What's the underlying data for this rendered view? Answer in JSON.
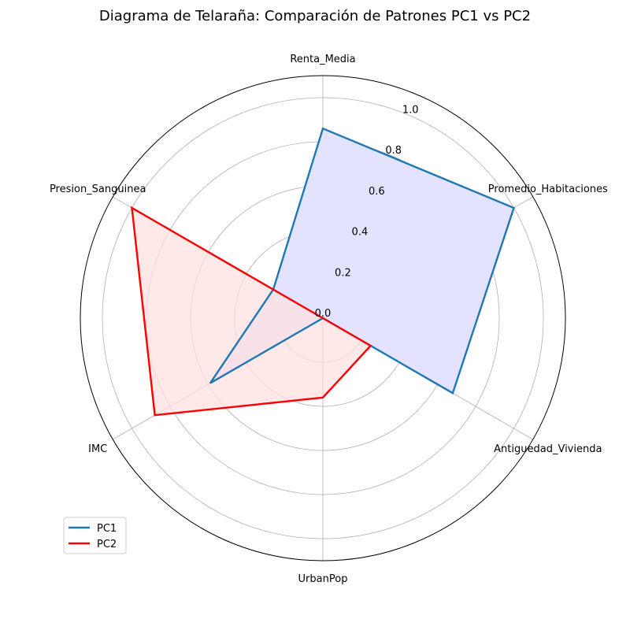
{
  "chart_data": {
    "type": "radar",
    "title": "Diagrama de Telaraña: Comparación de Patrones PC1 vs PC2",
    "categories": [
      "Renta_Media",
      "Promedio_Habitaciones",
      "Antiguedad_Vivienda",
      "UrbanPop",
      "IMC",
      "Presion_Sanguinea"
    ],
    "radial_ticks": [
      0.0,
      0.2,
      0.4,
      0.6,
      0.8,
      1.0
    ],
    "radial_tick_labels": [
      "0.0",
      "0.2",
      "0.4",
      "0.6",
      "0.8",
      "1.0"
    ],
    "rlim": [
      0,
      1.1
    ],
    "grid": true,
    "legend_position": "lower-left",
    "series": [
      {
        "name": "PC1",
        "values": [
          0.86,
          1.0,
          0.68,
          0.0,
          0.59,
          0.26
        ],
        "color": "#1f77b4",
        "fill": "#e3e3ff"
      },
      {
        "name": "PC2",
        "values": [
          0.0,
          0.0,
          0.25,
          0.36,
          0.88,
          1.0
        ],
        "color": "#ff0000",
        "fill": "#ffe0e0"
      }
    ]
  }
}
